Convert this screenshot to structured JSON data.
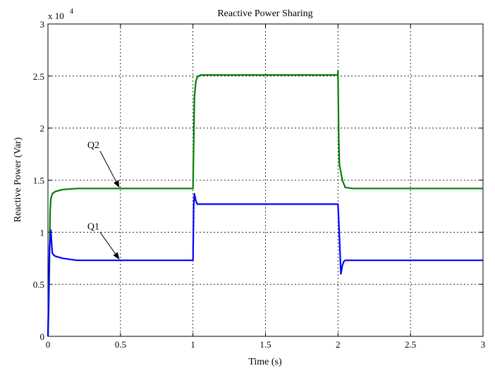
{
  "chart_data": {
    "type": "line",
    "title": "Reactive Power Sharing",
    "xlabel": "Time (s)",
    "ylabel": "Reactive Power (Var)",
    "y_multiplier_label": "x 10",
    "y_multiplier_exponent": "4",
    "xlim": [
      0,
      3
    ],
    "ylim": [
      0,
      3
    ],
    "grid": true,
    "x_ticks": [
      {
        "value": 0,
        "label": "0"
      },
      {
        "value": 0.5,
        "label": "0.5"
      },
      {
        "value": 1,
        "label": "1"
      },
      {
        "value": 1.5,
        "label": "1.5"
      },
      {
        "value": 2,
        "label": "2"
      },
      {
        "value": 2.5,
        "label": "2.5"
      },
      {
        "value": 3,
        "label": "3"
      }
    ],
    "y_ticks": [
      {
        "value": 0,
        "label": "0"
      },
      {
        "value": 0.5,
        "label": "0.5"
      },
      {
        "value": 1,
        "label": "1"
      },
      {
        "value": 1.5,
        "label": "1.5"
      },
      {
        "value": 2,
        "label": "2"
      },
      {
        "value": 2.5,
        "label": "2.5"
      },
      {
        "value": 3,
        "label": "3"
      }
    ],
    "series": [
      {
        "name": "Q2",
        "color": "#008000",
        "x": [
          0,
          0.005,
          0.01,
          0.015,
          0.02,
          0.03,
          0.05,
          0.1,
          0.2,
          0.5,
          0.999,
          1.0,
          1.01,
          1.02,
          1.03,
          1.05,
          1.1,
          1.5,
          1.999,
          2.0,
          2.005,
          2.01,
          2.02,
          2.03,
          2.05,
          2.1,
          2.5,
          3.0
        ],
        "y": [
          0,
          0.25,
          0.7,
          1.2,
          1.32,
          1.37,
          1.39,
          1.41,
          1.42,
          1.42,
          1.42,
          1.42,
          2.3,
          2.45,
          2.49,
          2.51,
          2.51,
          2.51,
          2.51,
          2.55,
          1.9,
          1.65,
          1.58,
          1.5,
          1.43,
          1.42,
          1.42,
          1.42
        ]
      },
      {
        "name": "Q1",
        "color": "#0000ff",
        "x": [
          0,
          0.005,
          0.01,
          0.02,
          0.025,
          0.03,
          0.04,
          0.05,
          0.1,
          0.2,
          0.5,
          0.999,
          1.0,
          1.005,
          1.01,
          1.02,
          1.03,
          1.05,
          1.5,
          1.999,
          2.0,
          2.01,
          2.02,
          2.03,
          2.04,
          2.05,
          2.1,
          2.5,
          3.0
        ],
        "y": [
          0,
          0.4,
          0.85,
          1.02,
          0.9,
          0.8,
          0.78,
          0.77,
          0.75,
          0.73,
          0.73,
          0.73,
          0.73,
          1.25,
          1.37,
          1.3,
          1.27,
          1.27,
          1.27,
          1.27,
          1.27,
          0.95,
          0.6,
          0.68,
          0.72,
          0.73,
          0.73,
          0.73,
          0.73
        ]
      }
    ],
    "annotations": [
      {
        "text": "Q2",
        "target_x": 0.5,
        "target_y": 1.42,
        "label_x": 0.33,
        "label_y": 1.78
      },
      {
        "text": "Q1",
        "target_x": 0.5,
        "target_y": 0.73,
        "label_x": 0.33,
        "label_y": 1.0
      }
    ]
  }
}
